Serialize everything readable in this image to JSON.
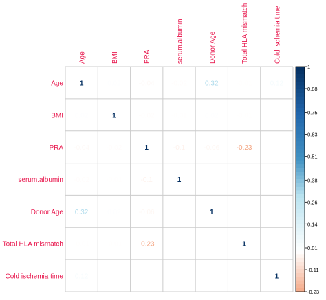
{
  "chart_data": {
    "type": "heatmap",
    "variables": [
      "Age",
      "BMI",
      "PRA",
      "serum.albumin",
      "Donor Age",
      "Total HLA mismatch",
      "Cold ischemia time"
    ],
    "matrix": [
      [
        1,
        0.02,
        -0.04,
        -0.02,
        0.32,
        -0.01,
        0.12
      ],
      [
        0.02,
        1,
        -0.02,
        -0.01,
        0.02,
        -0.01,
        0.0
      ],
      [
        -0.04,
        -0.02,
        1,
        -0.1,
        -0.06,
        -0.23,
        0.0
      ],
      [
        -0.02,
        -0.01,
        -0.1,
        1,
        0.0,
        0.0,
        0.0
      ],
      [
        0.32,
        0.02,
        -0.06,
        0.0,
        1,
        0.0,
        0.0
      ],
      [
        -0.01,
        -0.01,
        -0.23,
        0.0,
        0.0,
        1,
        0.0
      ],
      [
        0.12,
        0.0,
        0.0,
        0.0,
        0.0,
        0.0,
        1
      ]
    ],
    "cell_labels": [
      [
        "1",
        "0.02",
        "-0.04",
        "-0.02",
        "0.32",
        "-0.01",
        "0.12"
      ],
      [
        "0.02",
        "1",
        "-0.02",
        "-0.01",
        "0.02",
        "-0.01",
        ""
      ],
      [
        "-0.04",
        "-0.02",
        "1",
        "-0.1",
        "-0.06",
        "-0.23",
        ""
      ],
      [
        "-0.02",
        "-0.01",
        "-0.1",
        "1",
        "",
        "",
        ""
      ],
      [
        "0.32",
        "0.02",
        "-0.06",
        "",
        "1",
        "",
        ""
      ],
      [
        "-0.01",
        "-0.01",
        "-0.23",
        "",
        "",
        "1",
        ""
      ],
      [
        "0.12",
        "",
        "",
        "",
        "",
        "",
        "1"
      ]
    ],
    "colorbar": {
      "range": [
        -0.23,
        1
      ],
      "ticks": [
        1,
        0.88,
        0.75,
        0.63,
        0.51,
        0.38,
        0.26,
        0.14,
        0.01,
        -0.11,
        -0.23
      ],
      "tick_labels": [
        "1",
        "0.88",
        "0.75",
        "0.63",
        "0.51",
        "0.38",
        "0.26",
        "0.14",
        "0.01",
        "-0.11",
        "-0.23"
      ]
    },
    "colors": {
      "label": "#e8174d",
      "grid": "#cccccc",
      "strong_positive": "#0b3a7e",
      "light_positive": "#9fd6ec",
      "negative": "#f4a28a"
    },
    "grid": true,
    "legend_position": "right"
  }
}
